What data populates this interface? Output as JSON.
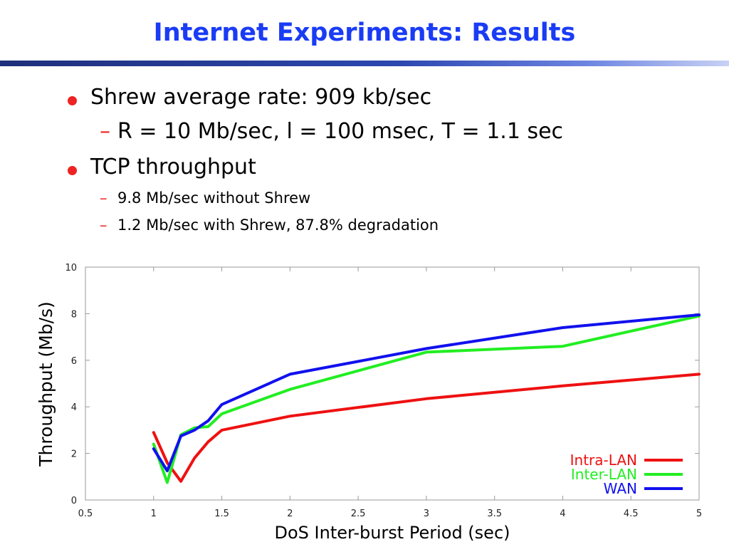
{
  "slide": {
    "title": "Internet Experiments: Results",
    "bullets": [
      {
        "text": "Shrew average rate: 909 kb/sec",
        "level": 1
      },
      {
        "text": "R = 10 Mb/sec, l = 100 msec, T = 1.1 sec",
        "level": 2
      },
      {
        "text": "TCP throughput",
        "level": 1
      },
      {
        "text": "9.8 Mb/sec without Shrew",
        "level": 3
      },
      {
        "text": "1.2 Mb/sec with Shrew, 87.8% degradation",
        "level": 3
      }
    ],
    "colors": {
      "title": "#1a3cf5",
      "bullet_marker": "#ee2222"
    }
  },
  "chart_data": {
    "type": "line",
    "title": "",
    "xlabel": "DoS Inter-burst Period (sec)",
    "ylabel": "Throughput (Mb/s)",
    "xlim": [
      0.5,
      5
    ],
    "ylim": [
      0,
      10
    ],
    "xticks": [
      "0.5",
      "1",
      "1.5",
      "2",
      "2.5",
      "3",
      "3.5",
      "4",
      "4.5",
      "5"
    ],
    "yticks": [
      "0",
      "2",
      "4",
      "6",
      "8",
      "10"
    ],
    "grid": false,
    "legend_position": "bottom-right",
    "series": [
      {
        "name": "Intra-LAN",
        "color": "#ee1111",
        "x": [
          1.0,
          1.1,
          1.2,
          1.3,
          1.4,
          1.5,
          2.0,
          3.0,
          4.0,
          5.0
        ],
        "y": [
          2.9,
          1.6,
          0.8,
          1.8,
          2.5,
          3.0,
          3.6,
          4.35,
          4.9,
          5.4
        ]
      },
      {
        "name": "Inter-LAN",
        "color": "#22ee22",
        "x": [
          1.0,
          1.1,
          1.2,
          1.3,
          1.4,
          1.5,
          2.0,
          3.0,
          4.0,
          5.0
        ],
        "y": [
          2.4,
          0.75,
          2.8,
          3.1,
          3.15,
          3.7,
          4.75,
          6.35,
          6.6,
          7.9
        ]
      },
      {
        "name": "WAN",
        "color": "#1111ee",
        "x": [
          1.0,
          1.1,
          1.2,
          1.3,
          1.4,
          1.5,
          2.0,
          3.0,
          4.0,
          5.0
        ],
        "y": [
          2.2,
          1.25,
          2.75,
          3.0,
          3.4,
          4.1,
          5.4,
          6.5,
          7.4,
          7.95
        ]
      }
    ]
  }
}
